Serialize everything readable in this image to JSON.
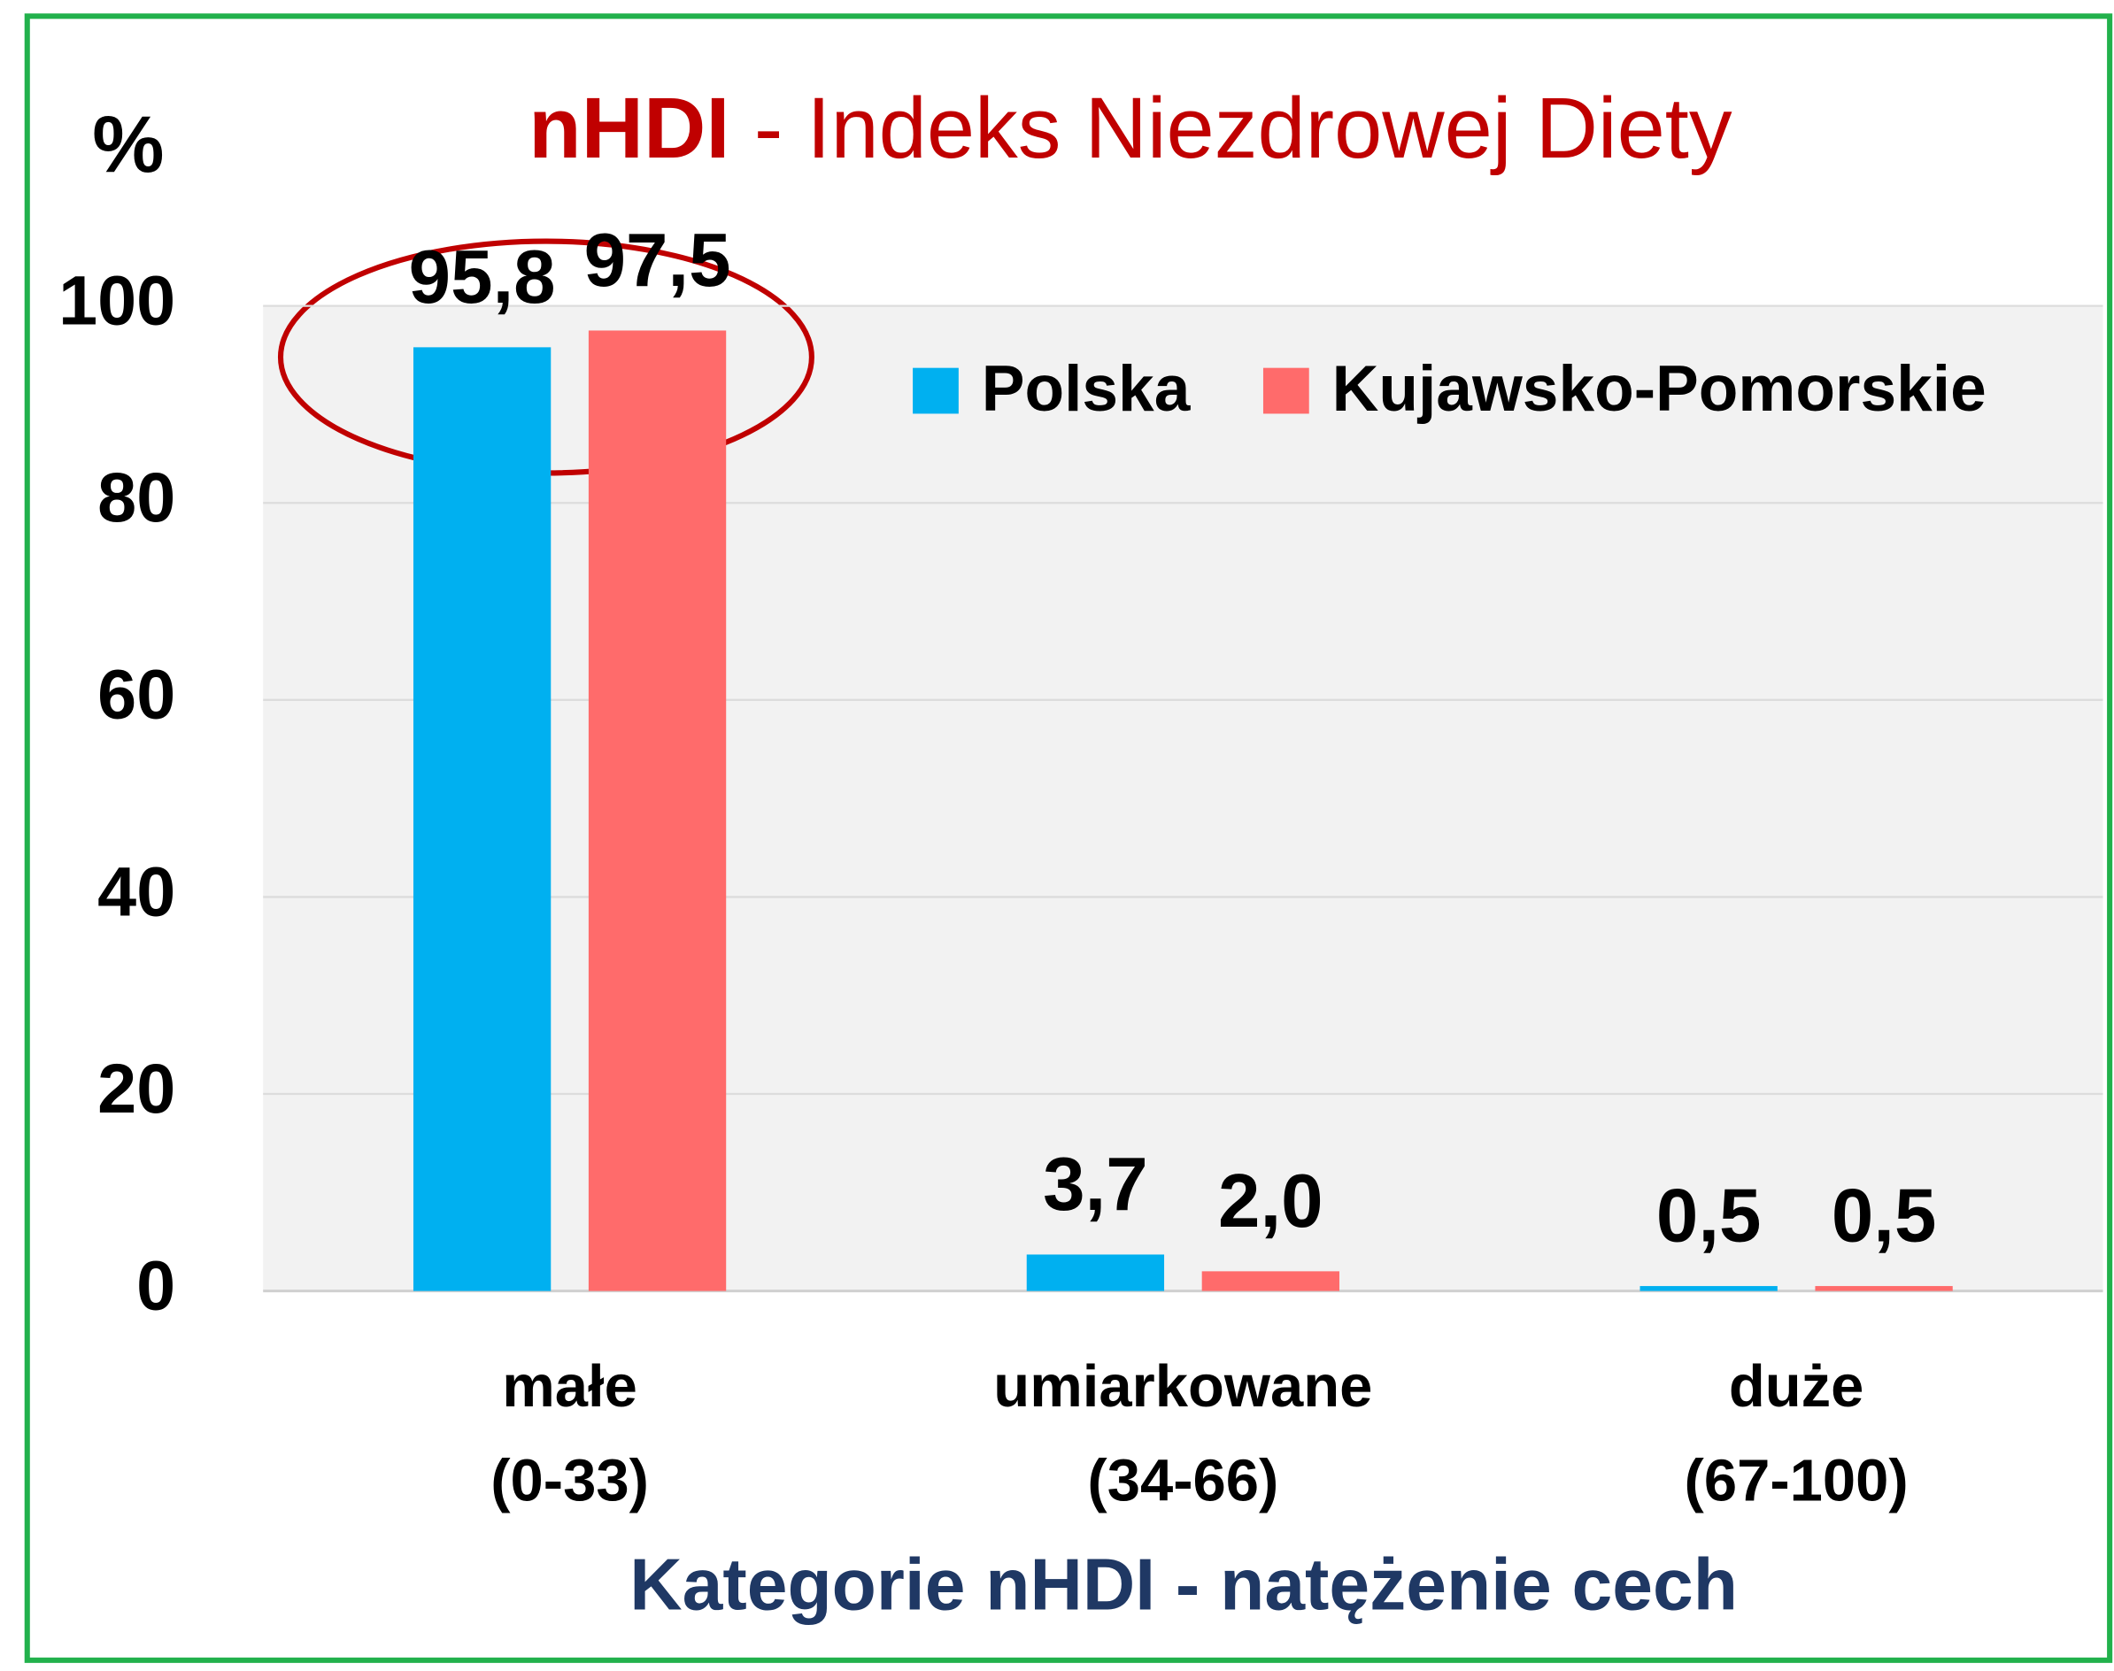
{
  "chart_data": {
    "type": "bar",
    "title_parts": [
      "nHDI",
      "- Indeks Niezdrowej Diety"
    ],
    "y_label": "%",
    "x_label": "Kategorie nHDI - natężenie cech",
    "categories": [
      [
        "małe",
        "(0-33)"
      ],
      [
        "umiarkowane",
        "(34-66)"
      ],
      [
        "duże",
        "(67-100)"
      ]
    ],
    "series": [
      {
        "name": "Polska",
        "color": "#00b0f0",
        "values": [
          95.8,
          3.7,
          0.5
        ],
        "value_labels": [
          "95,8",
          "3,7",
          "0,5"
        ]
      },
      {
        "name": "Kujawsko-Pomorskie",
        "color": "#ff6b6b",
        "values": [
          97.5,
          2.0,
          0.5
        ],
        "value_labels": [
          "97,5",
          "2,0",
          "0,5"
        ]
      }
    ],
    "ylim": [
      0,
      100
    ],
    "yticks": [
      0,
      20,
      40,
      60,
      80,
      100
    ],
    "grid": true,
    "legend": "top-right"
  }
}
